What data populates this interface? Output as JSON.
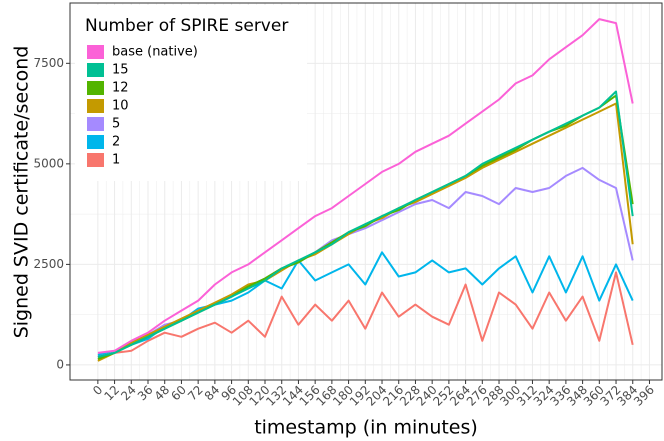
{
  "chart_data": {
    "type": "line",
    "x_label": "timestamp (in minutes)",
    "y_label": "Signed SVID certificate/second",
    "legend_title": "Number of SPIRE server",
    "legend": "top-left",
    "grid": true,
    "x": [
      0,
      12,
      24,
      36,
      48,
      60,
      72,
      84,
      96,
      108,
      120,
      132,
      144,
      156,
      168,
      180,
      192,
      204,
      216,
      228,
      240,
      252,
      264,
      276,
      288,
      300,
      312,
      324,
      336,
      348,
      360,
      372,
      384
    ],
    "xlim": [
      -20,
      405
    ],
    "xticks": [
      0,
      12,
      24,
      36,
      48,
      60,
      72,
      84,
      96,
      108,
      120,
      132,
      144,
      156,
      168,
      180,
      192,
      204,
      216,
      228,
      240,
      252,
      264,
      276,
      288,
      300,
      312,
      324,
      336,
      348,
      360,
      372,
      384,
      396
    ],
    "ylim": [
      -375,
      9000
    ],
    "yticks": [
      0,
      2500,
      5000,
      7500
    ],
    "series": [
      {
        "name": "base (native)",
        "color": "#FB61D7",
        "values": [
          300,
          350,
          600,
          800,
          1100,
          1350,
          1600,
          2000,
          2300,
          2500,
          2800,
          3100,
          3400,
          3700,
          3900,
          4200,
          4500,
          4800,
          5000,
          5300,
          5500,
          5700,
          6000,
          6300,
          6600,
          7000,
          7200,
          7600,
          7900,
          8200,
          8600,
          8500,
          6500
        ]
      },
      {
        "name": "15",
        "color": "#00C094",
        "values": [
          200,
          300,
          500,
          700,
          900,
          1100,
          1300,
          1500,
          1700,
          1900,
          2100,
          2400,
          2600,
          2800,
          3000,
          3300,
          3500,
          3700,
          3900,
          4100,
          4300,
          4500,
          4700,
          5000,
          5200,
          5400,
          5600,
          5800,
          6000,
          6200,
          6400,
          6800,
          3700
        ]
      },
      {
        "name": "12",
        "color": "#53B400",
        "values": [
          150,
          300,
          500,
          700,
          900,
          1100,
          1300,
          1500,
          1700,
          1950,
          2150,
          2400,
          2550,
          2800,
          3050,
          3300,
          3450,
          3700,
          3850,
          4100,
          4300,
          4500,
          4700,
          4950,
          5150,
          5350,
          5600,
          5800,
          5950,
          6200,
          6400,
          6700,
          4000
        ]
      },
      {
        "name": "10",
        "color": "#C49A00",
        "values": [
          100,
          300,
          550,
          750,
          950,
          1150,
          1350,
          1550,
          1750,
          2000,
          2100,
          2350,
          2600,
          2750,
          3000,
          3250,
          3500,
          3650,
          3900,
          4050,
          4250,
          4450,
          4650,
          4900,
          5100,
          5300,
          5500,
          5700,
          5900,
          6100,
          6300,
          6500,
          3000
        ]
      },
      {
        "name": "5",
        "color": "#A58AFF",
        "values": [
          200,
          300,
          550,
          750,
          1000,
          1100,
          1350,
          1500,
          1700,
          1950,
          2150,
          2400,
          2550,
          2800,
          3100,
          3250,
          3400,
          3600,
          3800,
          4000,
          4100,
          3900,
          4300,
          4200,
          4000,
          4400,
          4300,
          4400,
          4700,
          4900,
          4600,
          4400,
          2600
        ]
      },
      {
        "name": "2",
        "color": "#00B6EB",
        "values": [
          250,
          350,
          500,
          650,
          950,
          1100,
          1400,
          1500,
          1600,
          1800,
          2100,
          1900,
          2600,
          2100,
          2300,
          2500,
          2000,
          2800,
          2200,
          2300,
          2600,
          2300,
          2400,
          2000,
          2400,
          2700,
          1800,
          2700,
          1800,
          2700,
          1600,
          2500,
          1600
        ]
      },
      {
        "name": "1",
        "color": "#F8766D",
        "values": [
          200,
          300,
          350,
          600,
          800,
          700,
          900,
          1050,
          800,
          1100,
          700,
          1700,
          1000,
          1500,
          1100,
          1600,
          900,
          1800,
          1200,
          1500,
          1200,
          1000,
          2000,
          600,
          1800,
          1500,
          900,
          1800,
          1100,
          1700,
          600,
          2300,
          500
        ]
      }
    ]
  }
}
